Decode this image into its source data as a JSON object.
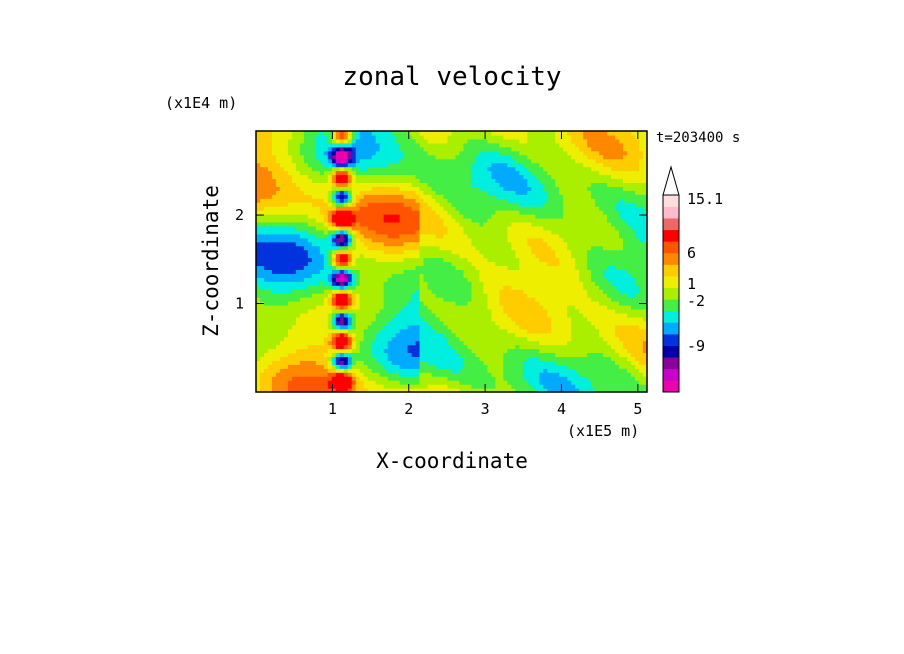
{
  "chart_data": {
    "type": "heatmap",
    "title": "zonal velocity",
    "xlabel": "X-coordinate",
    "ylabel": "Z-coordinate",
    "x_unit": "(x1E5 m)",
    "y_unit": "(x1E4 m)",
    "time_label": "t=203400 s",
    "xlim": [
      0,
      5.12
    ],
    "ylim": [
      0,
      2.95
    ],
    "xticks": [
      {
        "value": 1,
        "label": "1"
      },
      {
        "value": 2,
        "label": "2"
      },
      {
        "value": 3,
        "label": "3"
      },
      {
        "value": 4,
        "label": "4"
      },
      {
        "value": 5,
        "label": "5"
      }
    ],
    "yticks": [
      {
        "value": 1,
        "label": "1"
      },
      {
        "value": 2,
        "label": "2"
      }
    ],
    "colorbar": {
      "levels": [
        "15.1",
        "6",
        "1",
        "-2",
        "-9"
      ],
      "colors": [
        "#ee00aa",
        "#cc00cc",
        "#880099",
        "#0000aa",
        "#0033dd",
        "#00aaff",
        "#00eedd",
        "#44ee44",
        "#aaee00",
        "#eeee00",
        "#ffcc00",
        "#ff8800",
        "#ff5500",
        "#ff0000",
        "#ee6666",
        "#ffbbcc",
        "#ffdddd"
      ]
    },
    "features": [
      {
        "x": 1.15,
        "z": 0.9,
        "desc": "narrow oscillating band with strong positive/negative alternation"
      },
      {
        "x": 3.0,
        "z": 1.2,
        "desc": "mid-domain mixed field"
      },
      {
        "x": 4.7,
        "z": 0.6,
        "desc": "blue negative patch"
      }
    ]
  }
}
